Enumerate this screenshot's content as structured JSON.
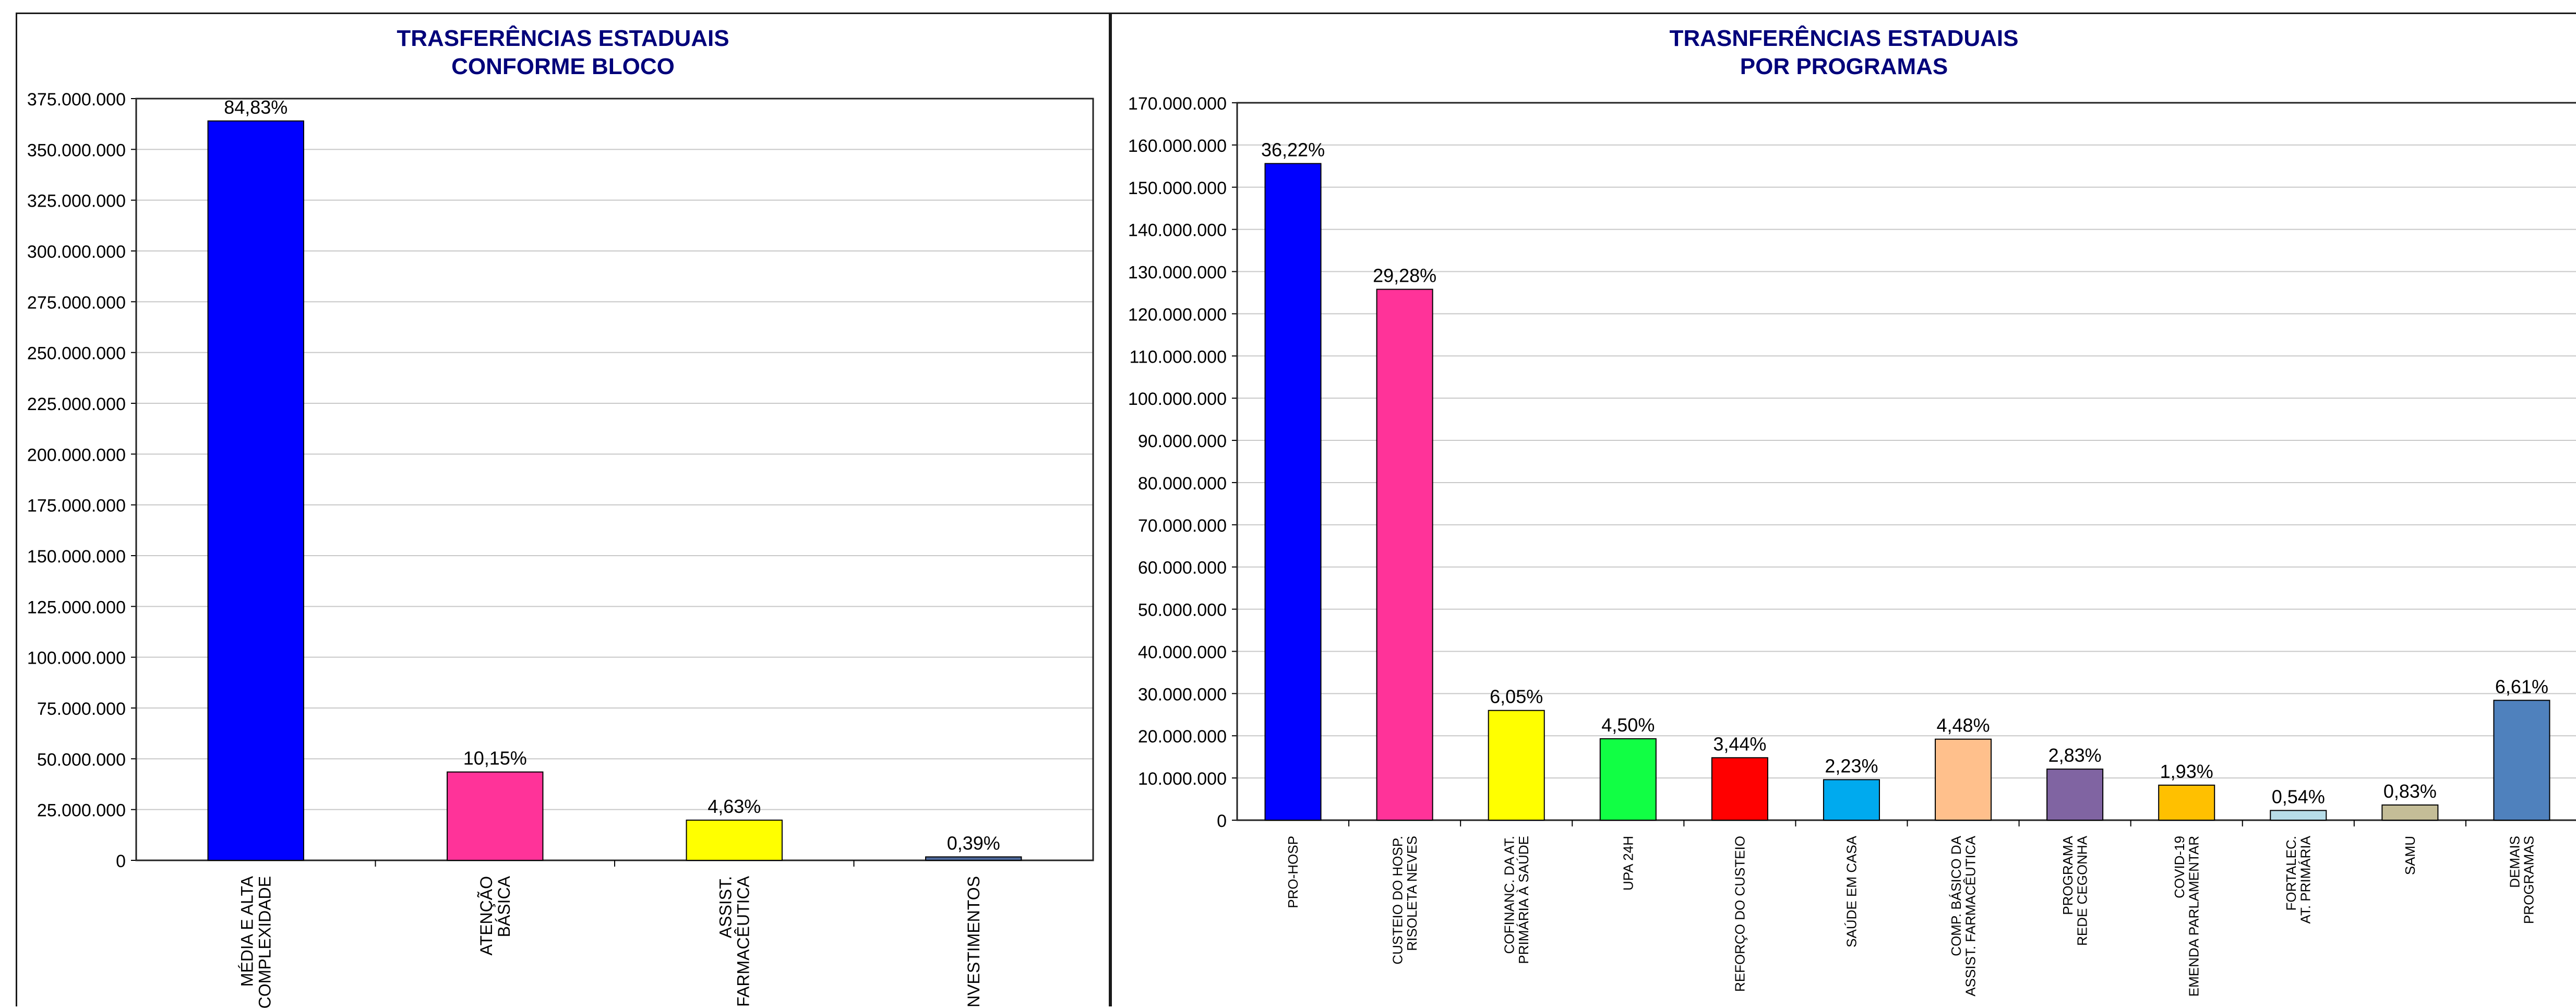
{
  "chart_data": [
    {
      "type": "bar",
      "title": "TRASFERÊNCIAS ESTADUAIS\nCONFORME BLOCO",
      "title_lines": [
        "TRASFERÊNCIAS ESTADUAIS",
        "CONFORME BLOCO"
      ],
      "categories": [
        [
          "MÉDIA E ALTA",
          "COMPLEXIDADE"
        ],
        [
          "ATENÇÃO",
          "BÁSICA"
        ],
        [
          "ASSIST.",
          "FARMACÊUTICA"
        ],
        [
          "INVESTIMENTOS"
        ]
      ],
      "values": [
        364000000,
        43500000,
        19800000,
        1700000
      ],
      "labels": [
        "84,83%",
        "10,15%",
        "4,63%",
        "0,39%"
      ],
      "colors": [
        "#0000FF",
        "#FF3399",
        "#FFFF00",
        "#4F6A9C"
      ],
      "ylim": [
        0,
        375000000
      ],
      "yticks": [
        "0",
        "25.000.000",
        "50.000.000",
        "75.000.000",
        "100.000.000",
        "125.000.000",
        "150.000.000",
        "175.000.000",
        "200.000.000",
        "225.000.000",
        "250.000.000",
        "275.000.000",
        "300.000.000",
        "325.000.000",
        "350.000.000",
        "375.000.000"
      ],
      "grid": true,
      "xlabel": "",
      "ylabel": ""
    },
    {
      "type": "bar",
      "title": "TRASNFERÊNCIAS ESTADUAIS\nPOR PROGRAMAS",
      "title_lines": [
        "TRASNFERÊNCIAS ESTADUAIS",
        "POR PROGRAMAS"
      ],
      "categories": [
        [
          "PRO-HOSP"
        ],
        [
          "CUSTEIO DO HOSP.",
          "RISOLETA NEVES"
        ],
        [
          "COFINANC. DA AT.",
          "PRIMÁRIA À SAÚDE"
        ],
        [
          "UPA 24H"
        ],
        [
          "REFORÇO DO CUSTEIO"
        ],
        [
          "SAÚDE EM CASA"
        ],
        [
          "COMP. BÁSICO DA",
          "ASSIST. FARMACÊUTICA"
        ],
        [
          "PROGRAMA",
          "REDE CEGONHA"
        ],
        [
          "COVID-19",
          "EMENDA PARLAMENTAR"
        ],
        [
          "FORTALEC.",
          "AT. PRIMÁRIA"
        ],
        [
          "SAMU"
        ],
        [
          "DEMAIS",
          "PROGRAMAS"
        ]
      ],
      "values": [
        155600000,
        125800000,
        26000000,
        19300000,
        14800000,
        9600000,
        19200000,
        12100000,
        8300000,
        2300000,
        3600000,
        28400000
      ],
      "labels": [
        "36,22%",
        "29,28%",
        "6,05%",
        "4,50%",
        "3,44%",
        "2,23%",
        "4,48%",
        "2,83%",
        "1,93%",
        "0,54%",
        "0,83%",
        "6,61%"
      ],
      "colors": [
        "#0000FF",
        "#FF3399",
        "#FFFF00",
        "#11FF44",
        "#FF0000",
        "#00AAEE",
        "#FFC08C",
        "#8064A2",
        "#FFC000",
        "#B7DDE8",
        "#C4BD97",
        "#4F81BD"
      ],
      "ylim": [
        0,
        170000000
      ],
      "yticks": [
        "0",
        "10.000.000",
        "20.000.000",
        "30.000.000",
        "40.000.000",
        "50.000.000",
        "60.000.000",
        "70.000.000",
        "80.000.000",
        "90.000.000",
        "100.000.000",
        "110.000.000",
        "120.000.000",
        "130.000.000",
        "140.000.000",
        "150.000.000",
        "160.000.000",
        "170.000.000"
      ],
      "grid": true,
      "xlabel": "",
      "ylabel": ""
    }
  ]
}
